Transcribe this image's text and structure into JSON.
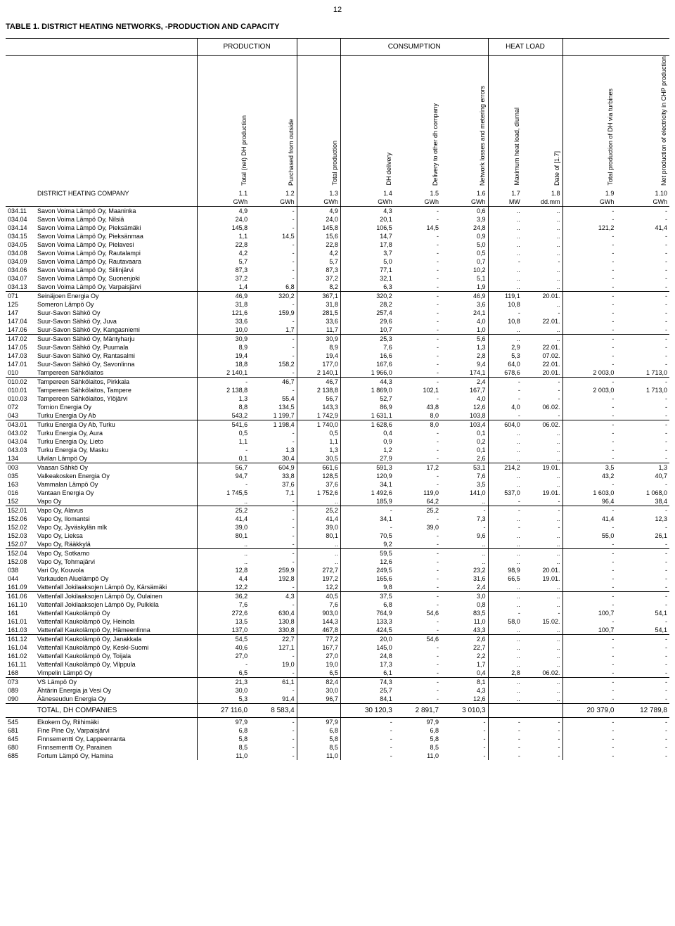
{
  "page_number": "12",
  "title": "TABLE 1. DISTRICT HEATING NETWORKS, -PRODUCTION AND CAPACITY",
  "group_headers": [
    "PRODUCTION",
    "",
    "CONSUMPTION",
    "HEAT LOAD",
    ""
  ],
  "col_headers": [
    "Total (net) DH production",
    "Purchased from outside",
    "Total production",
    "DH delivery",
    "Delivery to other dh company",
    "Network losses and metering errors",
    "Maximum heat load, diurnal",
    "Date of [1.7]",
    "Total production of DH via turbines",
    "Net production of electricity in CHP production"
  ],
  "row_label": "DISTRICT HEATING COMPANY",
  "col_nums": [
    "1.1",
    "1.2",
    "1.3",
    "1.4",
    "1.5",
    "1.6",
    "1.7",
    "1.8",
    "1.9",
    "1.10"
  ],
  "units": [
    "GWh",
    "GWh",
    "GWh",
    "GWh",
    "GWh",
    "GWh",
    "MW",
    "dd.mm",
    "GWh",
    "GWh"
  ],
  "rows": [
    [
      "034.11",
      "Savon Voima Lämpö Oy, Maaninka",
      "4,9",
      "-",
      "4,9",
      "4,3",
      "-",
      "0,6",
      "..",
      "..",
      "-",
      "-"
    ],
    [
      "034.04",
      "Savon Voima Lämpö Oy, Nilsiä",
      "24,0",
      "-",
      "24,0",
      "20,1",
      "-",
      "3,9",
      "..",
      "..",
      "-",
      "-"
    ],
    [
      "034.14",
      "Savon Voima Lämpö Oy, Pieksämäki",
      "145,8",
      "-",
      "145,8",
      "106,5",
      "14,5",
      "24,8",
      "..",
      "..",
      "121,2",
      "41,4"
    ],
    [
      "034.15",
      "Savon Voima Lämpö Oy, Pieksänmaa",
      "1,1",
      "14,5",
      "15,6",
      "14,7",
      "-",
      "0,9",
      "..",
      "..",
      "-",
      "-"
    ],
    [
      "034.05",
      "Savon Voima Lämpö Oy, Pielavesi",
      "22,8",
      "-",
      "22,8",
      "17,8",
      "-",
      "5,0",
      "..",
      "..",
      "-",
      "-"
    ],
    [
      "034.08",
      "Savon Voima Lämpö Oy, Rautalampi",
      "4,2",
      "-",
      "4,2",
      "3,7",
      "-",
      "0,5",
      "..",
      "..",
      "-",
      "-"
    ],
    [
      "034.09",
      "Savon Voima Lämpö Oy, Rautavaara",
      "5,7",
      "-",
      "5,7",
      "5,0",
      "-",
      "0,7",
      "-",
      "-",
      "-",
      "-"
    ],
    [
      "034.06",
      "Savon Voima Lämpö Oy, Siilinjärvi",
      "87,3",
      "-",
      "87,3",
      "77,1",
      "-",
      "10,2",
      "..",
      "..",
      "-",
      "-"
    ],
    [
      "034.07",
      "Savon Voima Lämpö Oy, Suonenjoki",
      "37,2",
      "-",
      "37,2",
      "32,1",
      "-",
      "5,1",
      "..",
      "..",
      "-",
      "-"
    ],
    [
      "034.13",
      "Savon Voima Lämpö Oy, Varpaisjärvi",
      "1,4",
      "6,8",
      "8,2",
      "6,3",
      "-",
      "1,9",
      "..",
      "..",
      "-",
      "-"
    ],
    [
      "071",
      "Seinäjoen Energia Oy",
      "46,9",
      "320,2",
      "367,1",
      "320,2",
      "-",
      "46,9",
      "119,1",
      "20.01.",
      "-",
      "-"
    ],
    [
      "125",
      "Someron Lämpö Oy",
      "31,8",
      "-",
      "31,8",
      "28,2",
      "-",
      "3,6",
      "10,8",
      "..",
      "-",
      "-"
    ],
    [
      "147",
      "Suur-Savon Sähkö Oy",
      "121,6",
      "159,9",
      "281,5",
      "257,4",
      "-",
      "24,1",
      "-",
      "-",
      "-",
      "-"
    ],
    [
      "147.04",
      "Suur-Savon Sähkö Oy, Juva",
      "33,6",
      "-",
      "33,6",
      "29,6",
      "-",
      "4,0",
      "10,8",
      "22.01.",
      "-",
      "-"
    ],
    [
      "147.06",
      "Suur-Savon Sähkö Oy, Kangasniemi",
      "10,0",
      "1,7",
      "11,7",
      "10,7",
      "-",
      "1,0",
      "..",
      "..",
      "-",
      "-"
    ],
    [
      "147.02",
      "Suur-Savon Sähkö Oy, Mäntyharju",
      "30,9",
      "-",
      "30,9",
      "25,3",
      "-",
      "5,6",
      "..",
      "..",
      "-",
      "-"
    ],
    [
      "147.05",
      "Suur-Savon Sähkö Oy, Puumala",
      "8,9",
      "-",
      "8,9",
      "7,6",
      "-",
      "1,3",
      "2,9",
      "22.01.",
      "-",
      "-"
    ],
    [
      "147.03",
      "Suur-Savon Sähkö Oy, Rantasalmi",
      "19,4",
      "-",
      "19,4",
      "16,6",
      "-",
      "2,8",
      "5,3",
      "07.02.",
      "-",
      "-"
    ],
    [
      "147.01",
      "Suur-Savon Sähkö Oy, Savonlinna",
      "18,8",
      "158,2",
      "177,0",
      "167,6",
      "-",
      "9,4",
      "64,0",
      "22.01.",
      "-",
      "-"
    ],
    [
      "010",
      "Tampereen Sähkölaitos",
      "2 140,1",
      "-",
      "2 140,1",
      "1 966,0",
      "-",
      "174,1",
      "678,6",
      "20.01.",
      "2 003,0",
      "1 713,0"
    ],
    [
      "010.02",
      "Tampereen Sähkölaitos, Pirkkala",
      "-",
      "46,7",
      "46,7",
      "44,3",
      "-",
      "2,4",
      "-",
      "-",
      "-",
      "-"
    ],
    [
      "010.01",
      "Tampereen Sähkölaitos, Tampere",
      "2 138,8",
      "-",
      "2 138,8",
      "1 869,0",
      "102,1",
      "167,7",
      "-",
      "-",
      "2 003,0",
      "1 713,0"
    ],
    [
      "010.03",
      "Tampereen Sähkölaitos, Ylöjärvi",
      "1,3",
      "55,4",
      "56,7",
      "52,7",
      "-",
      "4,0",
      "-",
      "-",
      "-",
      "-"
    ],
    [
      "072",
      "Tornion Energia Oy",
      "8,8",
      "134,5",
      "143,3",
      "86,9",
      "43,8",
      "12,6",
      "4,0",
      "06.02.",
      "-",
      "-"
    ],
    [
      "043",
      "Turku Energia Oy Ab",
      "543,2",
      "1 199,7",
      "1 742,9",
      "1 631,1",
      "8,0",
      "103,8",
      "-",
      "-",
      "-",
      "-"
    ],
    [
      "043.01",
      "Turku Energia Oy Ab, Turku",
      "541,6",
      "1 198,4",
      "1 740,0",
      "1 628,6",
      "8,0",
      "103,4",
      "604,0",
      "06.02.",
      "-",
      "-"
    ],
    [
      "043.02",
      "Turku Energia Oy, Aura",
      "0,5",
      "-",
      "0,5",
      "0,4",
      "-",
      "0,1",
      "..",
      "..",
      "-",
      "-"
    ],
    [
      "043.04",
      "Turku Energia Oy, Lieto",
      "1,1",
      "-",
      "1,1",
      "0,9",
      "-",
      "0,2",
      "..",
      "..",
      "-",
      "-"
    ],
    [
      "043.03",
      "Turku Energia Oy, Masku",
      "-",
      "1,3",
      "1,3",
      "1,2",
      "-",
      "0,1",
      "..",
      "..",
      "-",
      "-"
    ],
    [
      "134",
      "Ulvilan Lämpö Oy",
      "0,1",
      "30,4",
      "30,5",
      "27,9",
      "-",
      "2,6",
      "..",
      "..",
      "-",
      "-"
    ],
    [
      "003",
      "Vaasan Sähkö Oy",
      "56,7",
      "604,9",
      "661,6",
      "591,3",
      "17,2",
      "53,1",
      "214,2",
      "19.01.",
      "3,5",
      "1,3"
    ],
    [
      "035",
      "Valkeakosken Energia Oy",
      "94,7",
      "33,8",
      "128,5",
      "120,9",
      "-",
      "7,6",
      "..",
      "..",
      "43,2",
      "40,7"
    ],
    [
      "163",
      "Vammalan Lämpö Oy",
      "-",
      "37,6",
      "37,6",
      "34,1",
      "-",
      "3,5",
      "..",
      "..",
      "-",
      "-"
    ],
    [
      "016",
      "Vantaan Energia Oy",
      "1 745,5",
      "7,1",
      "1 752,6",
      "1 492,6",
      "119,0",
      "141,0",
      "537,0",
      "19.01.",
      "1 603,0",
      "1 068,0"
    ],
    [
      "152",
      "Vapo Oy",
      "..",
      "-",
      "..",
      "185,9",
      "64,2",
      "..",
      "-",
      "-",
      "96,4",
      "38,4"
    ],
    [
      "152.01",
      "Vapo Oy, Alavus",
      "25,2",
      "-",
      "25,2",
      "-",
      "25,2",
      "-",
      "-",
      "-",
      "-",
      "-"
    ],
    [
      "152.06",
      "Vapo Oy, Ilomantsi",
      "41,4",
      "-",
      "41,4",
      "34,1",
      "-",
      "7,3",
      "..",
      "..",
      "41,4",
      "12,3"
    ],
    [
      "152.02",
      "Vapo Oy, Jyväskylän mlk",
      "39,0",
      "-",
      "39,0",
      "-",
      "39,0",
      "-",
      "-",
      "-",
      "-",
      "-"
    ],
    [
      "152.03",
      "Vapo Oy, Lieksa",
      "80,1",
      "-",
      "80,1",
      "70,5",
      "-",
      "9,6",
      "..",
      "..",
      "55,0",
      "26,1"
    ],
    [
      "152.07",
      "Vapo Oy, Rääkkylä",
      "..",
      "-",
      "..",
      "9,2",
      "-",
      "..",
      "..",
      "..",
      "-",
      "-"
    ],
    [
      "152.04",
      "Vapo Oy, Sotkamo",
      "..",
      "-",
      "..",
      "59,5",
      "-",
      "..",
      "..",
      "..",
      "-",
      "-"
    ],
    [
      "152.08",
      "Vapo Oy, Tohmajärvi",
      "..",
      "-",
      "..",
      "12,6",
      "-",
      "..",
      "..",
      "..",
      "-",
      "-"
    ],
    [
      "038",
      "Vari Oy, Kouvola",
      "12,8",
      "259,9",
      "272,7",
      "249,5",
      "-",
      "23,2",
      "98,9",
      "20.01.",
      "-",
      "-"
    ],
    [
      "044",
      "Varkauden Aluelämpö Oy",
      "4,4",
      "192,8",
      "197,2",
      "165,6",
      "-",
      "31,6",
      "66,5",
      "19.01.",
      "-",
      "-"
    ],
    [
      "161.09",
      "Vattenfall Jokilaaksojen Lämpö Oy, Kärsämäki",
      "12,2",
      "-",
      "12,2",
      "9,8",
      "-",
      "2,4",
      "..",
      "..",
      "-",
      "-"
    ],
    [
      "161.06",
      "Vattenfall Jokilaaksojen Lämpö Oy, Oulainen",
      "36,2",
      "4,3",
      "40,5",
      "37,5",
      "-",
      "3,0",
      "..",
      "..",
      "-",
      "-"
    ],
    [
      "161.10",
      "Vattenfall Jokilaaksojen Lämpö Oy, Pulkkila",
      "7,6",
      "-",
      "7,6",
      "6,8",
      "-",
      "0,8",
      "..",
      "..",
      "-",
      "-"
    ],
    [
      "161",
      "Vattenfall Kaukolämpö Oy",
      "272,6",
      "630,4",
      "903,0",
      "764,9",
      "54,6",
      "83,5",
      "-",
      "-",
      "100,7",
      "54,1"
    ],
    [
      "161.01",
      "Vattenfall Kaukolämpö Oy, Heinola",
      "13,5",
      "130,8",
      "144,3",
      "133,3",
      "-",
      "11,0",
      "58,0",
      "15.02.",
      "-",
      "-"
    ],
    [
      "161.03",
      "Vattenfall Kaukolämpö Oy, Hämeenlinna",
      "137,0",
      "330,8",
      "467,8",
      "424,5",
      "-",
      "43,3",
      "..",
      "..",
      "100,7",
      "54,1"
    ],
    [
      "161.12",
      "Vattenfall Kaukolämpö Oy, Janakkala",
      "54,5",
      "22,7",
      "77,2",
      "20,0",
      "54,6",
      "2,6",
      "..",
      "..",
      "-",
      "-"
    ],
    [
      "161.04",
      "Vattenfall Kaukolämpö Oy, Keski-Suomi",
      "40,6",
      "127,1",
      "167,7",
      "145,0",
      "-",
      "22,7",
      "..",
      "..",
      "-",
      "-"
    ],
    [
      "161.02",
      "Vattenfall Kaukolämpö Oy, Toijala",
      "27,0",
      "-",
      "27,0",
      "24,8",
      "-",
      "2,2",
      "..",
      "..",
      "-",
      "-"
    ],
    [
      "161.11",
      "Vattenfall Kaukolämpö Oy, Vilppula",
      "-",
      "19,0",
      "19,0",
      "17,3",
      "-",
      "1,7",
      "..",
      "..",
      "-",
      "-"
    ],
    [
      "168",
      "Vimpelin Lämpö Oy",
      "6,5",
      "-",
      "6,5",
      "6,1",
      "-",
      "0,4",
      "2,8",
      "06.02.",
      "-",
      "-"
    ],
    [
      "073",
      "VS Lämpö Oy",
      "21,3",
      "61,1",
      "82,4",
      "74,3",
      "-",
      "8,1",
      "..",
      "..",
      "-",
      "-"
    ],
    [
      "089",
      "Ähtärin Energia ja Vesi Oy",
      "30,0",
      "-",
      "30,0",
      "25,7",
      "-",
      "4,3",
      "..",
      "..",
      "-",
      "-"
    ],
    [
      "090",
      "Ääneseudun Energia Oy",
      "5,3",
      "91,4",
      "96,7",
      "84,1",
      "-",
      "12,6",
      "..",
      "..",
      "-",
      "-"
    ]
  ],
  "total_row": [
    "",
    "TOTAL, DH COMPANIES",
    "27 116,0",
    "8 583,4",
    "",
    "30 120,3",
    "2 891,7",
    "3 010,3",
    "",
    "",
    "20 379,0",
    "12 789,8"
  ],
  "footer_rows": [
    [
      "545",
      "Ekokem Oy, Riihimäki",
      "97,9",
      "-",
      "97,9",
      "-",
      "97,9",
      "-",
      "-",
      "-",
      "-",
      "-"
    ],
    [
      "681",
      "Fine Pine Oy, Varpaisjärvi",
      "6,8",
      "-",
      "6,8",
      "-",
      "6,8",
      "-",
      "-",
      "-",
      "-",
      "-"
    ],
    [
      "645",
      "Finnsementti Oy, Lappeenranta",
      "5,8",
      "-",
      "5,8",
      "-",
      "5,8",
      "-",
      "-",
      "-",
      "-",
      "-"
    ],
    [
      "680",
      "Finnsementti Oy, Parainen",
      "8,5",
      "-",
      "8,5",
      "-",
      "8,5",
      "-",
      "-",
      "-",
      "-",
      "-"
    ],
    [
      "685",
      "Fortum Lämpö Oy, Hamina",
      "11,0",
      "-",
      "11,0",
      "-",
      "11,0",
      "-",
      "-",
      "-",
      "-",
      "-"
    ]
  ],
  "breaks_before": [
    10,
    15,
    20,
    25,
    30,
    35,
    40,
    45,
    50,
    55
  ]
}
